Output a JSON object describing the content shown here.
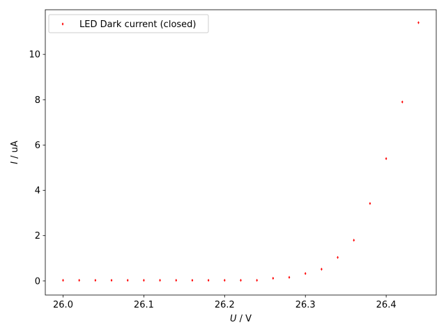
{
  "chart_data": {
    "type": "scatter",
    "xlabel": {
      "var": "U",
      "unit": " / V"
    },
    "ylabel": {
      "var": "I",
      "unit": " / uA"
    },
    "xlim": [
      25.978,
      26.462
    ],
    "ylim": [
      -0.62,
      11.97
    ],
    "xticks": [
      26.0,
      26.1,
      26.2,
      26.3,
      26.4
    ],
    "xtick_labels": [
      "26.0",
      "26.1",
      "26.2",
      "26.3",
      "26.4"
    ],
    "yticks": [
      0,
      2,
      4,
      6,
      8,
      10
    ],
    "ytick_labels": [
      "0",
      "2",
      "4",
      "6",
      "8",
      "10"
    ],
    "grid": false,
    "legend_position": "upper-left",
    "series": [
      {
        "name": "LED Dark current (closed)",
        "color": "#ff0000",
        "marker": "diamond",
        "x": [
          26.0,
          26.02,
          26.04,
          26.06,
          26.08,
          26.1,
          26.12,
          26.14,
          26.16,
          26.18,
          26.2,
          26.22,
          26.24,
          26.26,
          26.28,
          26.3,
          26.32,
          26.34,
          26.36,
          26.38,
          26.4,
          26.42,
          26.44
        ],
        "y": [
          0.03,
          0.03,
          0.03,
          0.03,
          0.03,
          0.03,
          0.03,
          0.03,
          0.03,
          0.03,
          0.03,
          0.03,
          0.03,
          0.12,
          0.16,
          0.33,
          0.52,
          1.04,
          1.8,
          3.42,
          5.4,
          7.9,
          11.4
        ]
      }
    ]
  }
}
